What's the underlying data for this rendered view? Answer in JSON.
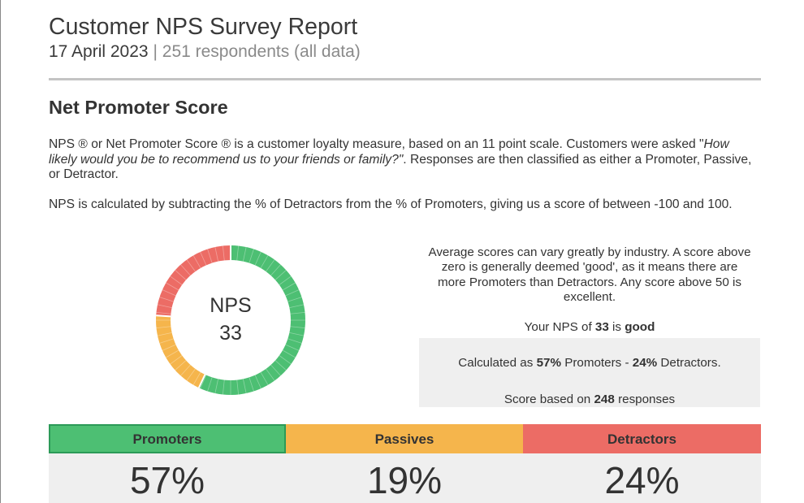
{
  "header": {
    "title": "Customer NPS Survey Report",
    "date": "17 April 2023",
    "separator": "|",
    "respondents": "251 respondents (all data)"
  },
  "section": {
    "title": "Net Promoter Score",
    "para1_before": "NPS ® or Net Promoter Score ® is a customer loyalty measure, based on an 11 point scale. Customers were asked \"",
    "para1_italic": "How likely would you be to recommend us to your friends or family?\"",
    "para1_after": ". Responses are then classified as either a Promoter, Passive, or Detractor.",
    "para2": "NPS is calculated by subtracting the % of Detractors from the % of Promoters, giving us a score of between -100 and 100."
  },
  "gauge": {
    "label": "NPS",
    "value": "33",
    "segments": [
      {
        "name": "Promoters",
        "fraction": 0.57,
        "color": "#4dbf73"
      },
      {
        "name": "Passives",
        "fraction": 0.19,
        "color": "#f5b54c"
      },
      {
        "name": "Detractors",
        "fraction": 0.24,
        "color": "#ec6c65"
      }
    ]
  },
  "summary": {
    "avg_text": "Average scores can vary greatly by industry. A score above zero is generally deemed 'good', as it means there are more Promoters than Detractors. Any score above 50 is excellent.",
    "your_nps_prefix": "Your NPS of",
    "your_nps_value": "33",
    "your_nps_mid": "is",
    "your_nps_rating": "good",
    "calc_prefix": "Calculated as",
    "calc_promoters": "57%",
    "calc_promoters_label": "Promoters -",
    "calc_detractors": "24%",
    "calc_detractors_label": "Detractors.",
    "based_prefix": "Score based on",
    "based_count": "248",
    "based_suffix": "responses"
  },
  "categories": {
    "promoters": {
      "label": "Promoters",
      "value": "57%",
      "color": "#4dbf73"
    },
    "passives": {
      "label": "Passives",
      "value": "19%",
      "color": "#f5b54c"
    },
    "detractors": {
      "label": "Detractors",
      "value": "24%",
      "color": "#ec6c65"
    }
  }
}
